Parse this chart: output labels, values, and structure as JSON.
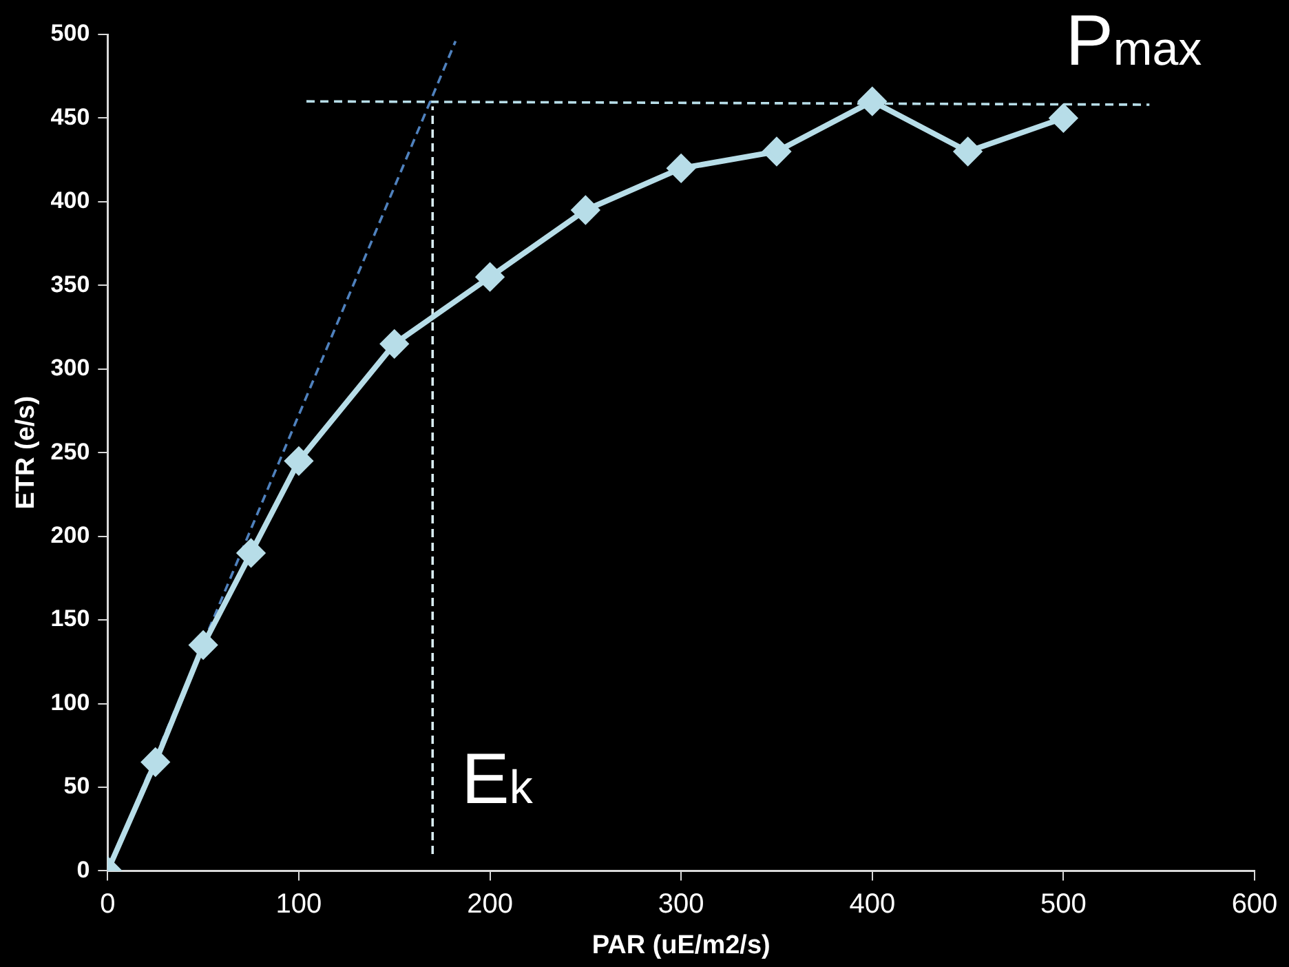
{
  "chart_data": {
    "type": "line",
    "xlabel": "PAR (uE/m2/s)",
    "ylabel": "ETR (e/s)",
    "xlim": [
      0,
      600
    ],
    "xticks": [
      0,
      100,
      200,
      300,
      400,
      500,
      600
    ],
    "ylim": [
      0,
      500
    ],
    "yticks": [
      0,
      50,
      100,
      150,
      200,
      250,
      300,
      350,
      400,
      450,
      500
    ],
    "grid": false,
    "legend": false,
    "marker": "diamond",
    "series": [
      {
        "color": "#b7dde8",
        "x": [
          0,
          25,
          50,
          75,
          100,
          150,
          200,
          250,
          300,
          350,
          400,
          450,
          500
        ],
        "values": [
          0,
          65,
          135,
          190,
          245,
          315,
          355,
          395,
          420,
          430,
          460,
          430,
          450
        ]
      },
      {
        "type": "line",
        "color": "#4f81bd",
        "line_style": "dashed",
        "marker": "none",
        "x": [
          0,
          182
        ],
        "values": [
          0,
          496
        ]
      },
      {
        "type": "line",
        "color": "#b7dde8",
        "line_style": "dashed",
        "marker": "none",
        "x": [
          104,
          545
        ],
        "values": [
          460,
          458
        ]
      },
      {
        "type": "line",
        "color": "#daeef3",
        "line_style": "dashed",
        "marker": "none",
        "x": [
          170,
          170
        ],
        "values": [
          10,
          457
        ]
      }
    ],
    "annotations": [
      "E$_{k}$",
      "P$_{max}$"
    ]
  }
}
